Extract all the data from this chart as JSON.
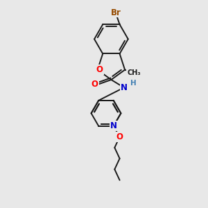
{
  "bg_color": "#e8e8e8",
  "bond_color": "#1a1a1a",
  "bond_width": 1.4,
  "atom_colors": {
    "Br": "#964B00",
    "O": "#FF0000",
    "N": "#0000CC",
    "H": "#4682B4",
    "C": "#1a1a1a"
  },
  "font_size": 8.5,
  "fig_w": 3.0,
  "fig_h": 3.0,
  "dpi": 100
}
